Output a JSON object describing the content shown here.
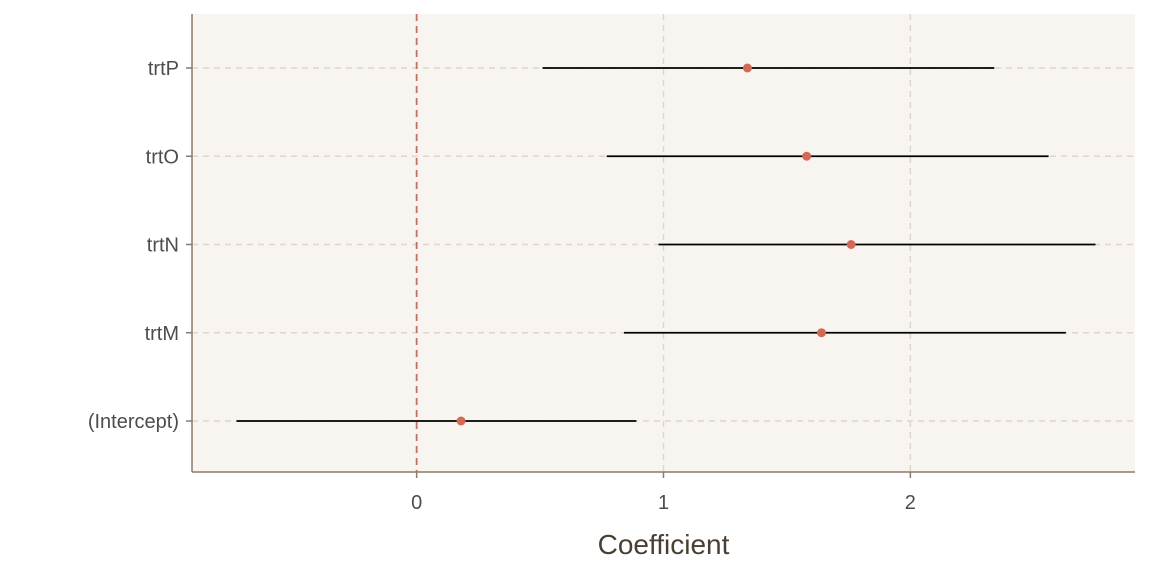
{
  "chart_data": {
    "type": "scatter",
    "subtype": "coefficient-plot",
    "title": "",
    "xlabel": "Coefficient",
    "ylabel": "",
    "xlim": [
      -0.91,
      2.91
    ],
    "x_ticks": [
      0,
      1,
      2
    ],
    "x_tick_labels": [
      "0",
      "1",
      "2"
    ],
    "reference_line": {
      "x": 0,
      "style": "dashed",
      "color": "#c0705e"
    },
    "grid": true,
    "legend": "none",
    "colors": {
      "panel_background": "#f8f5f1",
      "axis_line": "#8a7b6a",
      "grid": "#dcd6cc",
      "point": "#d46a55",
      "interval": "#000000"
    },
    "categories": [
      "(Intercept)",
      "trtM",
      "trtN",
      "trtO",
      "trtP"
    ],
    "series": [
      {
        "estimates": [
          0.18,
          1.64,
          1.76,
          1.58,
          1.34
        ],
        "lower": [
          -0.73,
          0.84,
          0.98,
          0.77,
          0.51
        ],
        "upper": [
          0.89,
          2.63,
          2.75,
          2.56,
          2.34
        ]
      }
    ]
  }
}
